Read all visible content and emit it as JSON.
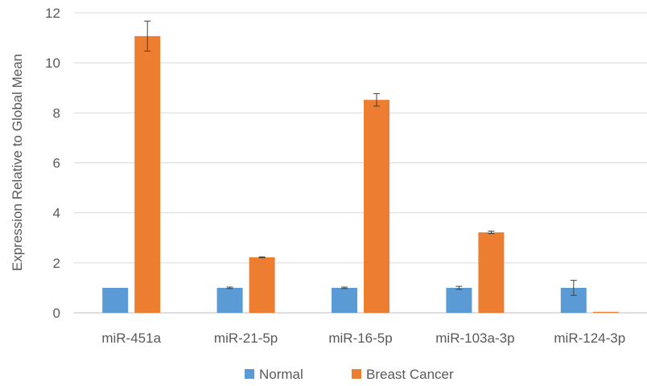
{
  "chart_data": {
    "type": "bar",
    "categories": [
      "miR-451a",
      "miR-21-5p",
      "miR-16-5p",
      "miR-103a-3p",
      "miR-124-3p"
    ],
    "series": [
      {
        "name": "Normal",
        "color": "#5B9BD5",
        "values": [
          1.0,
          1.0,
          1.0,
          1.0,
          1.0
        ],
        "errors": [
          0.0,
          0.03,
          0.03,
          0.06,
          0.3
        ]
      },
      {
        "name": "Breast Cancer",
        "color": "#ED7D31",
        "values": [
          11.07,
          2.22,
          8.52,
          3.22,
          0.04
        ],
        "errors": [
          0.6,
          0.02,
          0.25,
          0.05,
          0.0
        ]
      }
    ],
    "xlabel": "",
    "ylabel": "Expression Relative to Global Mean",
    "ylim": [
      0,
      12
    ],
    "yticks": [
      0,
      2,
      4,
      6,
      8,
      10,
      12
    ],
    "grid": true,
    "legend_position": "bottom"
  }
}
